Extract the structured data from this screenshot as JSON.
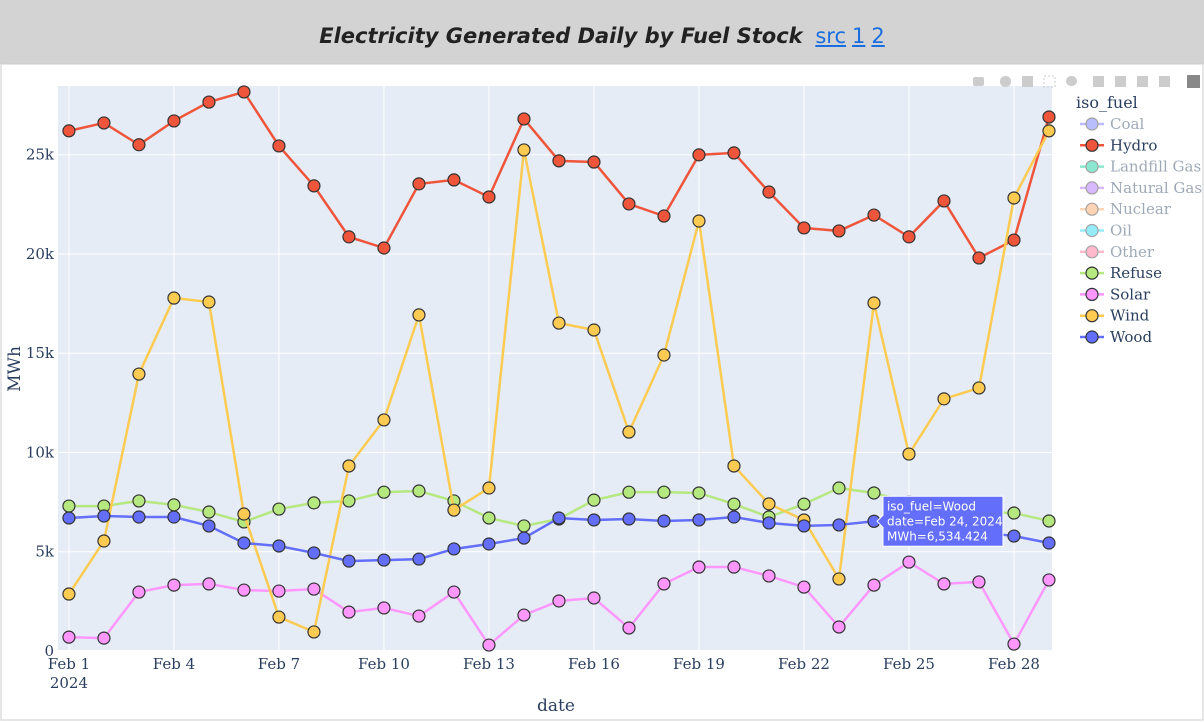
{
  "header": {
    "title": "Electricity Generated Daily by Fuel Stock",
    "links": [
      "src",
      "1",
      "2"
    ]
  },
  "chart_data": {
    "type": "line",
    "xaxis_title": "date",
    "yaxis_title": "MWh",
    "legend_title": "iso_fuel",
    "x": [
      "2024-02-01",
      "2024-02-02",
      "2024-02-03",
      "2024-02-04",
      "2024-02-05",
      "2024-02-06",
      "2024-02-07",
      "2024-02-08",
      "2024-02-09",
      "2024-02-10",
      "2024-02-11",
      "2024-02-12",
      "2024-02-13",
      "2024-02-14",
      "2024-02-15",
      "2024-02-16",
      "2024-02-17",
      "2024-02-18",
      "2024-02-19",
      "2024-02-20",
      "2024-02-21",
      "2024-02-22",
      "2024-02-23",
      "2024-02-24",
      "2024-02-25",
      "2024-02-26",
      "2024-02-27",
      "2024-02-28",
      "2024-02-29"
    ],
    "xlim": [
      "2024-01-31T16:30",
      "2024-02-29T02:04"
    ],
    "xticks": [
      {
        "value": "2024-02-01",
        "label": "Feb 1\n2024"
      },
      {
        "value": "2024-02-04",
        "label": "Feb 4"
      },
      {
        "value": "2024-02-07",
        "label": "Feb 7"
      },
      {
        "value": "2024-02-10",
        "label": "Feb 10"
      },
      {
        "value": "2024-02-13",
        "label": "Feb 13"
      },
      {
        "value": "2024-02-16",
        "label": "Feb 16"
      },
      {
        "value": "2024-02-19",
        "label": "Feb 19"
      },
      {
        "value": "2024-02-22",
        "label": "Feb 22"
      },
      {
        "value": "2024-02-25",
        "label": "Feb 25"
      },
      {
        "value": "2024-02-28",
        "label": "Feb 28"
      }
    ],
    "ylim": [
      0,
      28460
    ],
    "yticks": [
      0,
      {
        "value": 5000,
        "label": "5k"
      },
      {
        "value": 10000,
        "label": "10k"
      },
      {
        "value": 15000,
        "label": "15k"
      },
      {
        "value": 20000,
        "label": "20k"
      },
      {
        "value": 25000,
        "label": "25k"
      }
    ],
    "grid": true,
    "legend_position": "right",
    "series": [
      {
        "name": "Coal",
        "color": "#636efa",
        "visible": false
      },
      {
        "name": "Hydro",
        "color": "#EF553B",
        "values": [
          26200,
          26600,
          25500,
          26700,
          27650,
          28160,
          25440,
          23430,
          20860,
          20300,
          23530,
          23730,
          22870,
          26800,
          24690,
          24630,
          22520,
          21910,
          24990,
          25090,
          23120,
          21310,
          21160,
          21960,
          20860,
          22670,
          19800,
          20700,
          26900
        ]
      },
      {
        "name": "Landfill Gas",
        "color": "#00cc96",
        "visible": false
      },
      {
        "name": "Natural Gas",
        "color": "#ab63fa",
        "visible": false
      },
      {
        "name": "Nuclear",
        "color": "#FFA15A",
        "visible": false
      },
      {
        "name": "Oil",
        "color": "#19d3f3",
        "visible": false
      },
      {
        "name": "Other",
        "color": "#FF6692",
        "visible": false
      },
      {
        "name": "Refuse",
        "color": "#B6E880",
        "values": [
          7300,
          7300,
          7560,
          7360,
          7000,
          6500,
          7150,
          7460,
          7560,
          8000,
          8060,
          7560,
          6700,
          6300,
          6650,
          7600,
          8000,
          8000,
          7960,
          7400,
          6750,
          7400,
          8210,
          7960,
          7500,
          7200,
          7000,
          6950,
          6550
        ]
      },
      {
        "name": "Solar",
        "color": "#FF97FF",
        "values": [
          700,
          650,
          2970,
          3320,
          3380,
          3070,
          3020,
          3120,
          1960,
          2170,
          1760,
          2970,
          300,
          1810,
          2520,
          2670,
          1160,
          3380,
          4230,
          4230,
          3780,
          3220,
          1210,
          3320,
          4480,
          3380,
          3480,
          350,
          3580
        ]
      },
      {
        "name": "Wind",
        "color": "#FECB52",
        "values": [
          2870,
          5540,
          13950,
          17780,
          17580,
          6900,
          1710,
          960,
          9320,
          11640,
          16930,
          7100,
          8210,
          25240,
          16520,
          16170,
          11030,
          14910,
          21660,
          9320,
          7410,
          6600,
          3630,
          17530,
          9920,
          12700,
          13250,
          22820,
          26200
        ]
      },
      {
        "name": "Wood",
        "color": "#636efa",
        "values": [
          6700,
          6800,
          6750,
          6750,
          6300,
          5440,
          5290,
          4940,
          4530,
          4580,
          4630,
          5140,
          5390,
          5690,
          6700,
          6600,
          6650,
          6550,
          6600,
          6750,
          6450,
          6300,
          6350,
          6534.424,
          6300,
          6100,
          6000,
          5790,
          5440
        ]
      }
    ],
    "tooltip": {
      "series": 10,
      "index": 23,
      "lines": [
        "iso_fuel=Wood",
        "date=Feb 24, 2024",
        "MWh=6,534.424"
      ]
    }
  }
}
